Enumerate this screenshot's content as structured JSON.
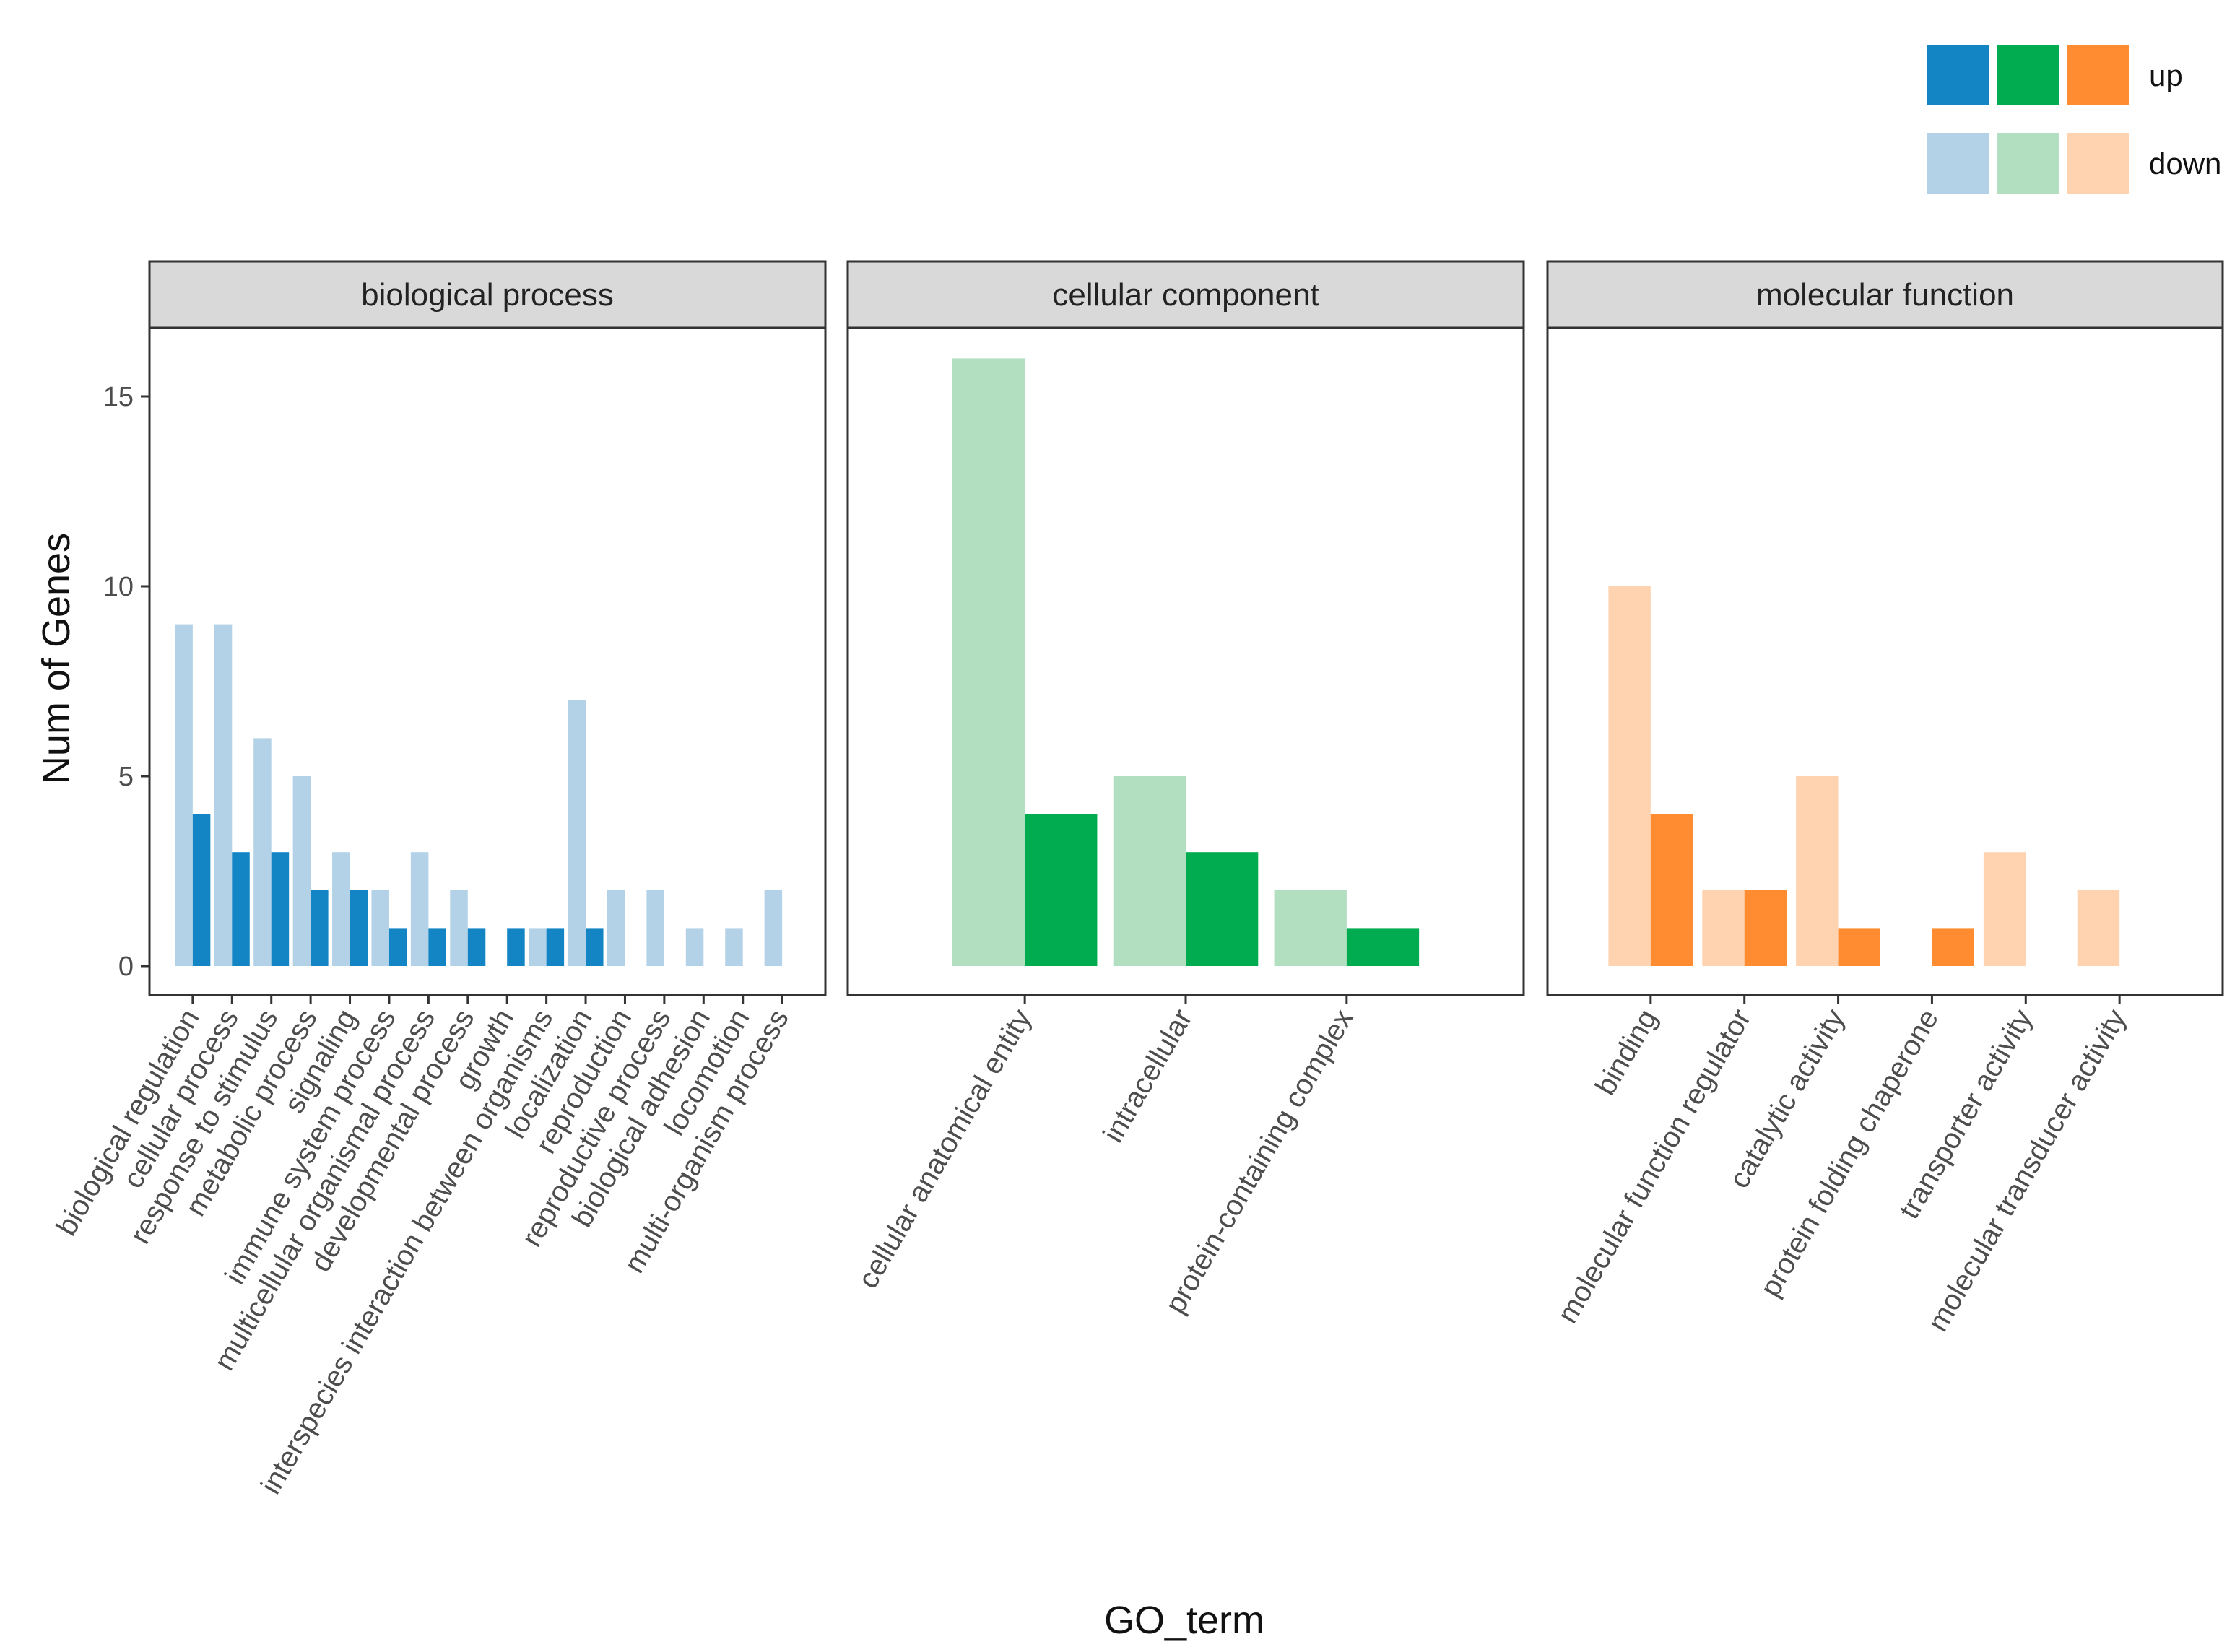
{
  "chart_data": {
    "type": "bar",
    "xlabel": "GO_term",
    "ylabel": "Num of Genes",
    "ylim": [
      0,
      17.5
    ],
    "y_ticks": [
      0,
      5,
      10,
      15
    ],
    "grid": false,
    "legend": {
      "position": "top-right",
      "entries": [
        {
          "label": "up",
          "colors": [
            "#1485C4",
            "#00AC4F",
            "#FF8C30"
          ]
        },
        {
          "label": "down",
          "colors": [
            "#B3D2E8",
            "#B2DFBF",
            "#FFD3B0"
          ]
        }
      ]
    },
    "panels": [
      {
        "name": "biological process",
        "up_color": "#1485C4",
        "down_color": "#B3D2E8",
        "categories": [
          "biological regulation",
          "cellular process",
          "response to stimulus",
          "metabolic process",
          "signaling",
          "immune system process",
          "multicellular organismal process",
          "developmental process",
          "growth",
          "interspecies interaction between organisms",
          "localization",
          "reproduction",
          "reproductive process",
          "biological adhesion",
          "locomotion",
          "multi-organism process"
        ],
        "series": [
          {
            "name": "down",
            "values": [
              9,
              9,
              6,
              5,
              3,
              2,
              3,
              2,
              0,
              1,
              7,
              2,
              2,
              1,
              1,
              2
            ]
          },
          {
            "name": "up",
            "values": [
              4,
              3,
              3,
              2,
              2,
              1,
              1,
              1,
              1,
              1,
              1,
              0,
              0,
              0,
              0,
              0
            ]
          }
        ]
      },
      {
        "name": "cellular component",
        "up_color": "#00AC4F",
        "down_color": "#B2DFBF",
        "categories": [
          "cellular anatomical entity",
          "intracellular",
          "protein-containing complex"
        ],
        "series": [
          {
            "name": "down",
            "values": [
              16,
              5,
              2
            ]
          },
          {
            "name": "up",
            "values": [
              4,
              3,
              1
            ]
          }
        ]
      },
      {
        "name": "molecular function",
        "up_color": "#FF8C30",
        "down_color": "#FFD3B0",
        "categories": [
          "binding",
          "molecular function regulator",
          "catalytic activity",
          "protein folding chaperone",
          "transporter activity",
          "molecular transducer activity"
        ],
        "series": [
          {
            "name": "down",
            "values": [
              10,
              2,
              5,
              0,
              3,
              2
            ]
          },
          {
            "name": "up",
            "values": [
              4,
              2,
              1,
              1,
              0,
              0
            ]
          }
        ]
      }
    ]
  }
}
